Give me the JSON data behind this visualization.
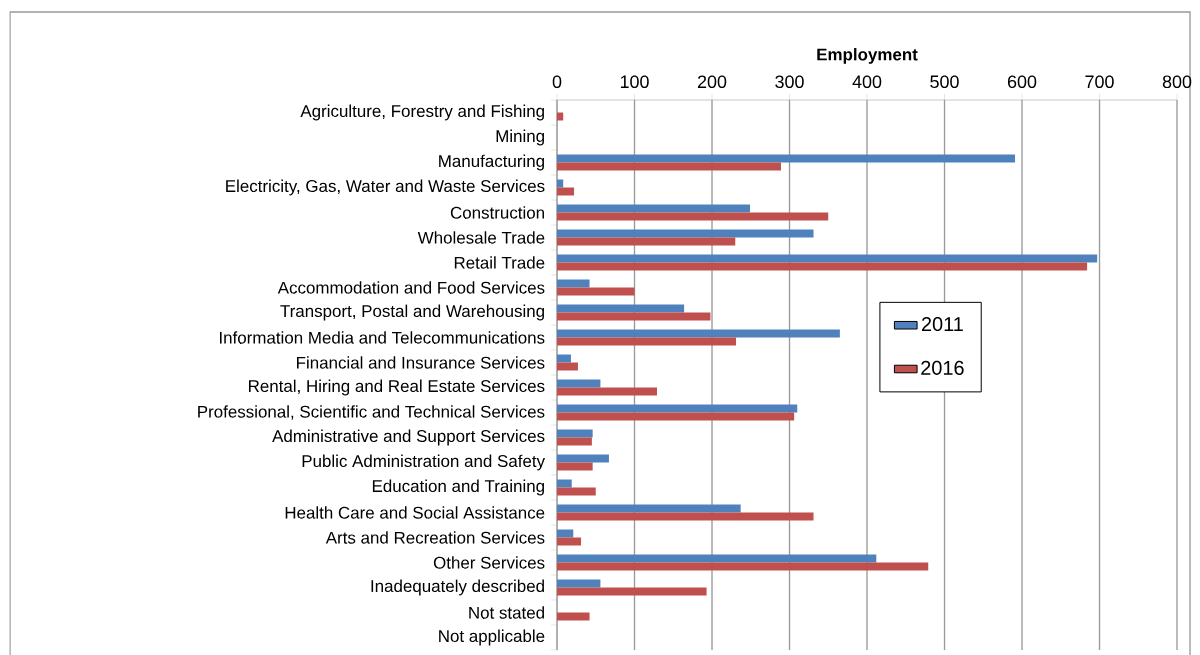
{
  "chart_data": {
    "type": "bar",
    "orientation": "horizontal",
    "xlabel": "Employment",
    "categories": [
      "Agriculture, Forestry and Fishing",
      "Mining",
      "Manufacturing",
      "Electricity, Gas, Water and Waste Services",
      "Construction",
      "Wholesale Trade",
      "Retail Trade",
      "Accommodation and Food Services",
      "Transport, Postal and Warehousing",
      "Information Media and Telecommunications",
      "Financial and Insurance Services",
      "Rental, Hiring and Real Estate Services",
      "Professional, Scientific and Technical Services",
      "Administrative and Support Services",
      "Public Administration and Safety",
      "Education and Training",
      "Health Care and Social Assistance",
      "Arts and Recreation Services",
      "Other Services",
      "Inadequately described",
      "Not stated",
      "Not applicable"
    ],
    "series": [
      {
        "name": "2011",
        "color": "#4f81bd",
        "values": [
          0,
          0,
          591,
          8,
          249,
          331,
          697,
          42,
          164,
          365,
          18,
          56,
          310,
          46,
          67,
          19,
          237,
          21,
          412,
          56,
          0,
          0
        ]
      },
      {
        "name": "2016",
        "color": "#c0504d",
        "values": [
          8,
          0,
          289,
          22,
          350,
          230,
          684,
          100,
          198,
          231,
          27,
          129,
          306,
          45,
          46,
          50,
          331,
          31,
          479,
          193,
          42,
          0
        ]
      }
    ],
    "xlim": [
      0,
      800
    ],
    "xticks": [
      0,
      100,
      200,
      300,
      400,
      500,
      600,
      700,
      800
    ],
    "grid": "x",
    "legend": "right"
  }
}
